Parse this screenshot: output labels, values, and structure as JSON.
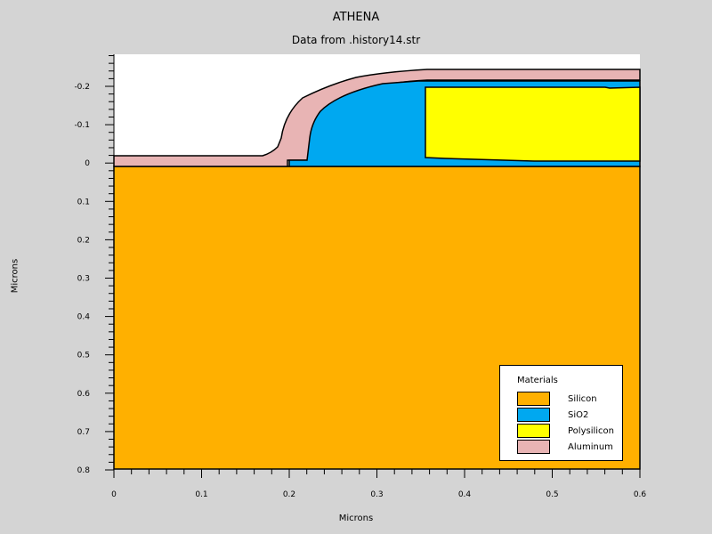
{
  "title": "ATHENA",
  "subtitle": "Data from .history14.str",
  "xlabel": "Microns",
  "ylabel": "Microns",
  "x_ticks": [
    "0",
    "0.1",
    "0.2",
    "0.3",
    "0.4",
    "0.5",
    "0.6"
  ],
  "y_ticks": [
    "-0.2",
    "-0.1",
    "0",
    "0.1",
    "0.2",
    "0.3",
    "0.4",
    "0.5",
    "0.6",
    "0.7",
    "0.8"
  ],
  "legend": {
    "title": "Materials",
    "items": [
      {
        "label": "Silicon",
        "color": "#ffb000"
      },
      {
        "label": "SiO2",
        "color": "#00a8f0"
      },
      {
        "label": "Polysilicon",
        "color": "#ffff00"
      },
      {
        "label": "Aluminum",
        "color": "#e8b4b4"
      }
    ]
  },
  "colors": {
    "background": "#d4d4d4",
    "plot_background": "#ffffff",
    "silicon": "#ffb000",
    "sio2": "#00a8f0",
    "polysilicon": "#ffff00",
    "aluminum": "#e8b4b4"
  }
}
